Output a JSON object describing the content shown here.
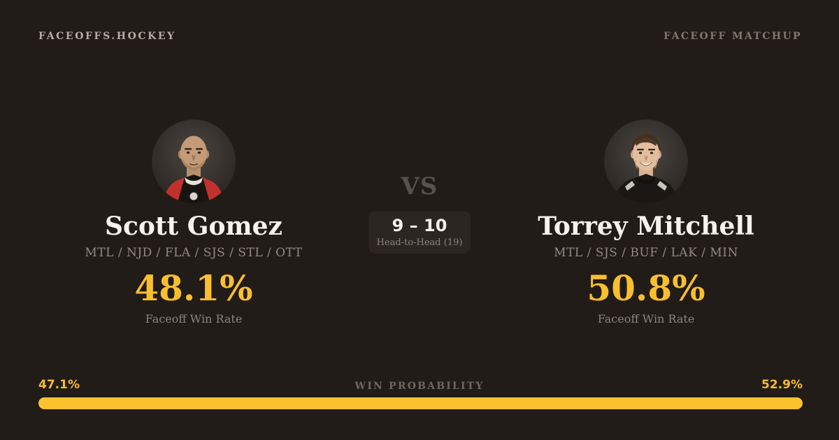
{
  "header": {
    "brand": "FACEOFFS.HOCKEY",
    "page_label": "FACEOFF MATCHUP"
  },
  "players": {
    "left": {
      "name": "Scott Gomez",
      "teams": "MTL / NJD / FLA / SJS / STL / OTT",
      "win_rate": "48.1%",
      "win_rate_label": "Faceoff Win Rate",
      "avatar": "scott-gomez-headshot"
    },
    "right": {
      "name": "Torrey Mitchell",
      "teams": "MTL / SJS / BUF / LAK / MIN",
      "win_rate": "50.8%",
      "win_rate_label": "Faceoff Win Rate",
      "avatar": "torrey-mitchell-headshot"
    }
  },
  "matchup": {
    "vs_label": "VS",
    "head_to_head_score": "9 – 10",
    "head_to_head_label": "Head-to-Head (19)"
  },
  "win_probability": {
    "label": "WIN PROBABILITY",
    "left_pct_label": "47.1%",
    "right_pct_label": "52.9%",
    "left_value": 47.1,
    "right_value": 52.9
  },
  "colors": {
    "background": "#211c17",
    "accent_gold": "#fbbe2d",
    "bar_gold": "#fcc22d",
    "text_light": "#f6f3ed",
    "text_muted": "#8a847c",
    "vs_gray": "#57524c",
    "box_bg": "#2b2622"
  }
}
